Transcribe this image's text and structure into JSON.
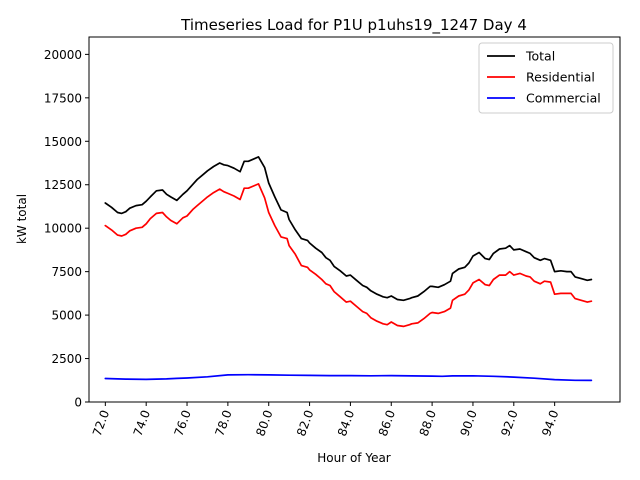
{
  "chart_data": {
    "type": "line",
    "title": "Timeseries Load for P1U p1uhs19_1247  Day 4",
    "xlabel": "Hour of Year",
    "ylabel": "kW total",
    "xlim": [
      71.2,
      97.2
    ],
    "ylim": [
      0,
      21000
    ],
    "xticks": [
      72,
      74,
      76,
      78,
      80,
      82,
      84,
      86,
      88,
      90,
      92,
      94
    ],
    "xtick_labels": [
      "72.0",
      "74.0",
      "76.0",
      "78.0",
      "80.0",
      "82.0",
      "84.0",
      "86.0",
      "88.0",
      "90.0",
      "92.0",
      "94.0"
    ],
    "yticks": [
      0,
      2500,
      5000,
      7500,
      10000,
      12500,
      15000,
      17500,
      20000
    ],
    "ytick_labels": [
      "0",
      "2500",
      "5000",
      "7500",
      "10000",
      "12500",
      "15000",
      "17500",
      "20000"
    ],
    "legend_position": "top-right",
    "series": [
      {
        "name": "Total",
        "color": "#000000",
        "x": [
          72.0,
          72.3,
          72.6,
          72.8,
          73.0,
          73.2,
          73.5,
          73.8,
          74.0,
          74.2,
          74.5,
          74.8,
          75.0,
          75.2,
          75.5,
          75.8,
          76.0,
          76.3,
          76.5,
          76.8,
          77.0,
          77.3,
          77.6,
          77.8,
          78.0,
          78.3,
          78.6,
          78.8,
          79.0,
          79.3,
          79.5,
          79.8,
          80.0,
          80.3,
          80.6,
          80.9,
          81.0,
          81.3,
          81.6,
          81.9,
          82.0,
          82.3,
          82.6,
          82.8,
          83.0,
          83.2,
          83.5,
          83.8,
          84.0,
          84.3,
          84.6,
          84.8,
          85.0,
          85.3,
          85.6,
          85.8,
          86.0,
          86.3,
          86.6,
          86.9,
          87.0,
          87.3,
          87.6,
          87.9,
          88.0,
          88.3,
          88.6,
          88.9,
          89.0,
          89.3,
          89.6,
          89.8,
          90.0,
          90.3,
          90.6,
          90.8,
          91.0,
          91.3,
          91.6,
          91.8,
          92.0,
          92.3,
          92.6,
          92.8,
          93.0,
          93.3,
          93.5,
          93.8,
          94.0,
          94.3,
          94.6,
          94.8,
          95.0,
          95.3,
          95.6,
          95.8
        ],
        "values": [
          11450,
          11200,
          10900,
          10850,
          10950,
          11150,
          11300,
          11350,
          11550,
          11800,
          12150,
          12200,
          11950,
          11800,
          11600,
          11950,
          12150,
          12550,
          12800,
          13100,
          13300,
          13550,
          13750,
          13650,
          13600,
          13450,
          13250,
          13850,
          13850,
          14000,
          14100,
          13500,
          12600,
          11800,
          11050,
          10900,
          10500,
          9900,
          9400,
          9300,
          9150,
          8850,
          8600,
          8300,
          8150,
          7800,
          7550,
          7250,
          7300,
          7000,
          6700,
          6600,
          6400,
          6200,
          6050,
          6000,
          6100,
          5900,
          5850,
          5950,
          6000,
          6100,
          6350,
          6650,
          6650,
          6600,
          6750,
          6950,
          7400,
          7650,
          7750,
          8000,
          8400,
          8600,
          8250,
          8200,
          8550,
          8800,
          8850,
          9000,
          8750,
          8800,
          8650,
          8550,
          8300,
          8150,
          8250,
          8150,
          7500,
          7550,
          7500,
          7500,
          7200,
          7100,
          7000,
          7050
        ]
      },
      {
        "name": "Residential",
        "color": "#ff0000",
        "x": [
          72.0,
          72.3,
          72.6,
          72.8,
          73.0,
          73.2,
          73.5,
          73.8,
          74.0,
          74.2,
          74.5,
          74.8,
          75.0,
          75.2,
          75.5,
          75.8,
          76.0,
          76.3,
          76.5,
          76.8,
          77.0,
          77.3,
          77.6,
          77.8,
          78.0,
          78.3,
          78.6,
          78.8,
          79.0,
          79.3,
          79.5,
          79.8,
          80.0,
          80.3,
          80.6,
          80.9,
          81.0,
          81.3,
          81.6,
          81.9,
          82.0,
          82.3,
          82.6,
          82.8,
          83.0,
          83.2,
          83.5,
          83.8,
          84.0,
          84.3,
          84.6,
          84.8,
          85.0,
          85.3,
          85.6,
          85.8,
          86.0,
          86.3,
          86.6,
          86.9,
          87.0,
          87.3,
          87.6,
          87.9,
          88.0,
          88.3,
          88.6,
          88.9,
          89.0,
          89.3,
          89.6,
          89.8,
          90.0,
          90.3,
          90.6,
          90.8,
          91.0,
          91.3,
          91.6,
          91.8,
          92.0,
          92.3,
          92.6,
          92.8,
          93.0,
          93.3,
          93.5,
          93.8,
          94.0,
          94.3,
          94.6,
          94.8,
          95.0,
          95.3,
          95.6,
          95.8
        ],
        "values": [
          10150,
          9900,
          9600,
          9550,
          9650,
          9850,
          10000,
          10050,
          10250,
          10550,
          10850,
          10900,
          10650,
          10450,
          10250,
          10600,
          10700,
          11100,
          11300,
          11600,
          11800,
          12050,
          12250,
          12100,
          12000,
          11850,
          11650,
          12300,
          12300,
          12450,
          12550,
          11750,
          10900,
          10150,
          9500,
          9400,
          9000,
          8500,
          7850,
          7750,
          7600,
          7350,
          7050,
          6800,
          6700,
          6350,
          6050,
          5750,
          5800,
          5500,
          5200,
          5100,
          4850,
          4650,
          4500,
          4450,
          4600,
          4400,
          4350,
          4450,
          4500,
          4550,
          4800,
          5100,
          5150,
          5100,
          5200,
          5400,
          5850,
          6100,
          6200,
          6450,
          6850,
          7050,
          6750,
          6700,
          7050,
          7300,
          7300,
          7500,
          7300,
          7400,
          7250,
          7200,
          6950,
          6800,
          6950,
          6900,
          6200,
          6250,
          6250,
          6250,
          5950,
          5850,
          5750,
          5800
        ]
      },
      {
        "name": "Commercial",
        "color": "#0000ff",
        "x": [
          72.0,
          73.0,
          74.0,
          74.5,
          75.0,
          75.5,
          76.0,
          77.0,
          78.0,
          79.0,
          80.0,
          81.0,
          82.0,
          83.0,
          84.0,
          85.0,
          86.0,
          87.0,
          88.0,
          88.5,
          89.0,
          90.0,
          91.0,
          92.0,
          93.0,
          94.0,
          95.0,
          95.8
        ],
        "values": [
          1350,
          1320,
          1300,
          1320,
          1330,
          1360,
          1380,
          1450,
          1560,
          1570,
          1560,
          1540,
          1530,
          1520,
          1520,
          1510,
          1520,
          1500,
          1490,
          1480,
          1500,
          1510,
          1480,
          1430,
          1370,
          1290,
          1250,
          1240
        ]
      }
    ]
  }
}
